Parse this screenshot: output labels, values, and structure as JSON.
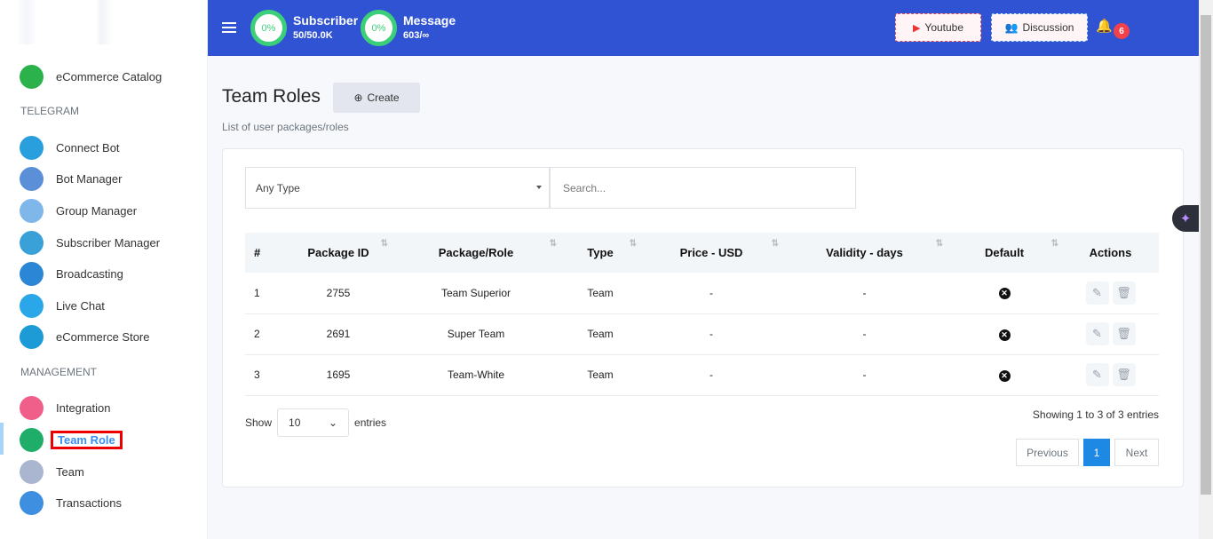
{
  "sidebar": {
    "sections": [
      "TELEGRAM",
      "MANAGEMENT"
    ],
    "items": [
      {
        "label": "eCommerce Catalog",
        "color": "#2bb24c"
      },
      {
        "label": "Connect Bot",
        "color": "#2a9fde"
      },
      {
        "label": "Bot Manager",
        "color": "#5b8fd8"
      },
      {
        "label": "Group Manager",
        "color": "#7fb7ea"
      },
      {
        "label": "Subscriber Manager",
        "color": "#3aa0d8"
      },
      {
        "label": "Broadcasting",
        "color": "#2b86d6"
      },
      {
        "label": "Live Chat",
        "color": "#2aa7e8"
      },
      {
        "label": "eCommerce Store",
        "color": "#1d9bd7"
      },
      {
        "label": "Integration",
        "color": "#ef5f8a"
      },
      {
        "label": "Team Role",
        "color": "#1fae6a"
      },
      {
        "label": "Team",
        "color": "#aab6cf"
      },
      {
        "label": "Transactions",
        "color": "#3e8fe0"
      }
    ],
    "active": "Team Role"
  },
  "header": {
    "subscriber": {
      "percent": "0%",
      "title": "Subscriber",
      "value": "50/50.0K"
    },
    "message": {
      "percent": "0%",
      "title": "Message",
      "value": "603/∞"
    },
    "youtube": "Youtube",
    "discussion": "Discussion",
    "notifications": "6",
    "color": "#3053d3"
  },
  "page": {
    "title": "Team Roles",
    "create": "Create",
    "subtitle": "List of user packages/roles"
  },
  "filters": {
    "type": "Any Type",
    "search_placeholder": "Search..."
  },
  "table": {
    "headers": [
      "#",
      "Package ID",
      "Package/Role",
      "Type",
      "Price - USD",
      "Validity - days",
      "Default",
      "Actions"
    ],
    "rows": [
      [
        "1",
        "2755",
        "Team Superior",
        "Team",
        "-",
        "-"
      ],
      [
        "2",
        "2691",
        "Super Team",
        "Team",
        "-",
        "-"
      ],
      [
        "3",
        "1695",
        "Team-White",
        "Team",
        "-",
        "-"
      ]
    ]
  },
  "footer": {
    "show": "Show",
    "length": "10",
    "entries": "entries",
    "info": "Showing 1 to 3 of 3 entries",
    "previous": "Previous",
    "page": "1",
    "next": "Next"
  }
}
